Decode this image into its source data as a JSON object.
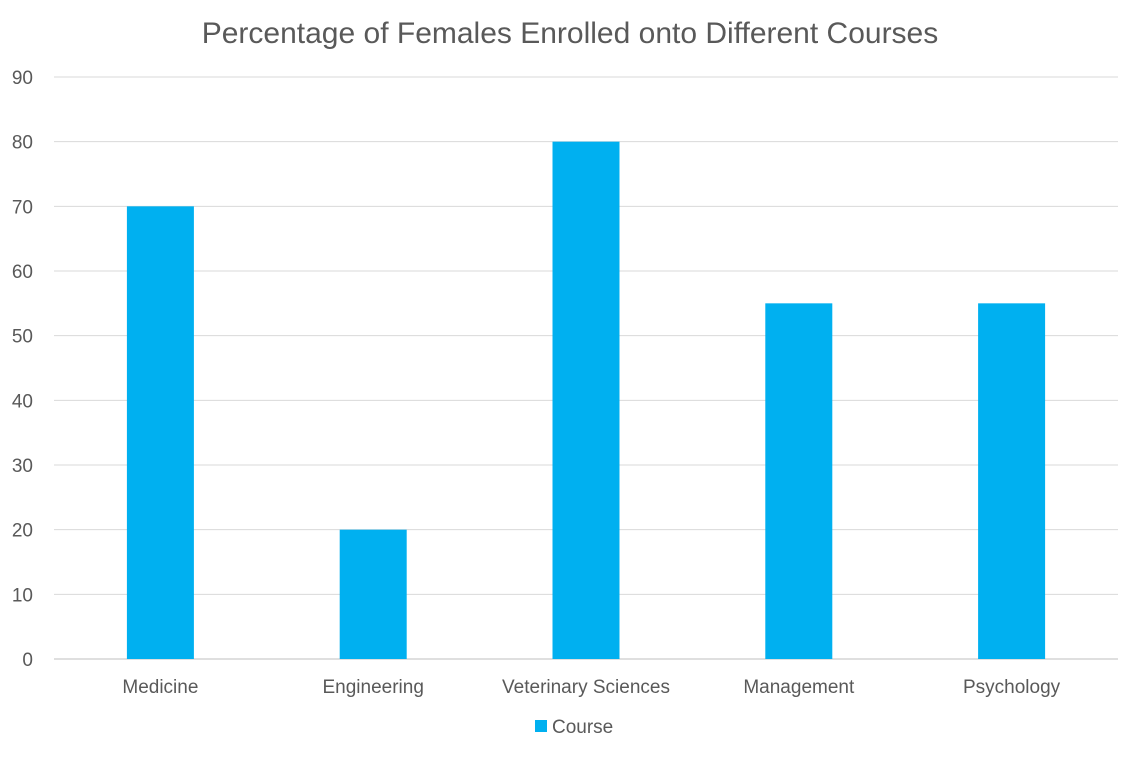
{
  "chart_data": {
    "type": "bar",
    "title": "Percentage of Females Enrolled onto Different Courses",
    "categories": [
      "Medicine",
      "Engineering",
      "Veterinary Sciences",
      "Management",
      "Psychology"
    ],
    "series": [
      {
        "name": "Course",
        "values": [
          70,
          20,
          80,
          55,
          55
        ],
        "color": "#00b0f0"
      }
    ],
    "ylim": [
      0,
      90
    ],
    "yticks": [
      0,
      10,
      20,
      30,
      40,
      50,
      60,
      70,
      80,
      90
    ],
    "grid": true,
    "legend": "bottom"
  }
}
